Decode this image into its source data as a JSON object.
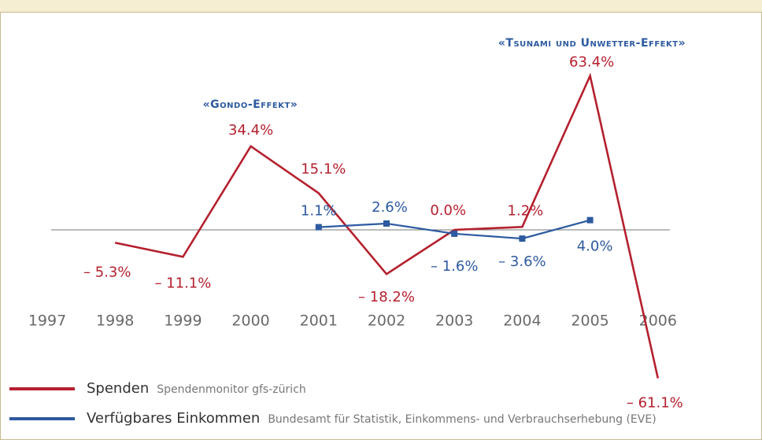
{
  "chart_data": {
    "type": "line",
    "categories": [
      "1997",
      "1998",
      "1999",
      "2000",
      "2001",
      "2002",
      "2003",
      "2004",
      "2005",
      "2006"
    ],
    "series": [
      {
        "name": "Spenden",
        "source": "Spendenmonitor gfs-zürich",
        "color": "#b5202e",
        "values": [
          null,
          -5.3,
          -11.1,
          34.4,
          15.1,
          -18.2,
          0.0,
          1.2,
          63.4,
          -61.1
        ],
        "value_labels": [
          null,
          "– 5.3%",
          "– 11.1%",
          "34.4%",
          "15.1%",
          "– 18.2%",
          "0.0%",
          "1.2%",
          "63.4%",
          "– 61.1%"
        ]
      },
      {
        "name": "Verfügbares Einkommen",
        "source": "Bundesamt für Statistik, Einkommens- und Verbrauchserhebung (EVE)",
        "color": "#2d5aa0",
        "values": [
          null,
          null,
          null,
          null,
          1.1,
          2.6,
          -1.6,
          -3.6,
          4.0,
          null
        ],
        "value_labels": [
          null,
          null,
          null,
          null,
          "1.1%",
          "2.6%",
          "– 1.6%",
          "– 3.6%",
          "4.0%",
          null
        ]
      }
    ],
    "annotations": [
      "«Gondo-Effekt»",
      "«Tsunami und Unwetter-Effekt»"
    ],
    "ylim": [
      -70,
      70
    ]
  }
}
